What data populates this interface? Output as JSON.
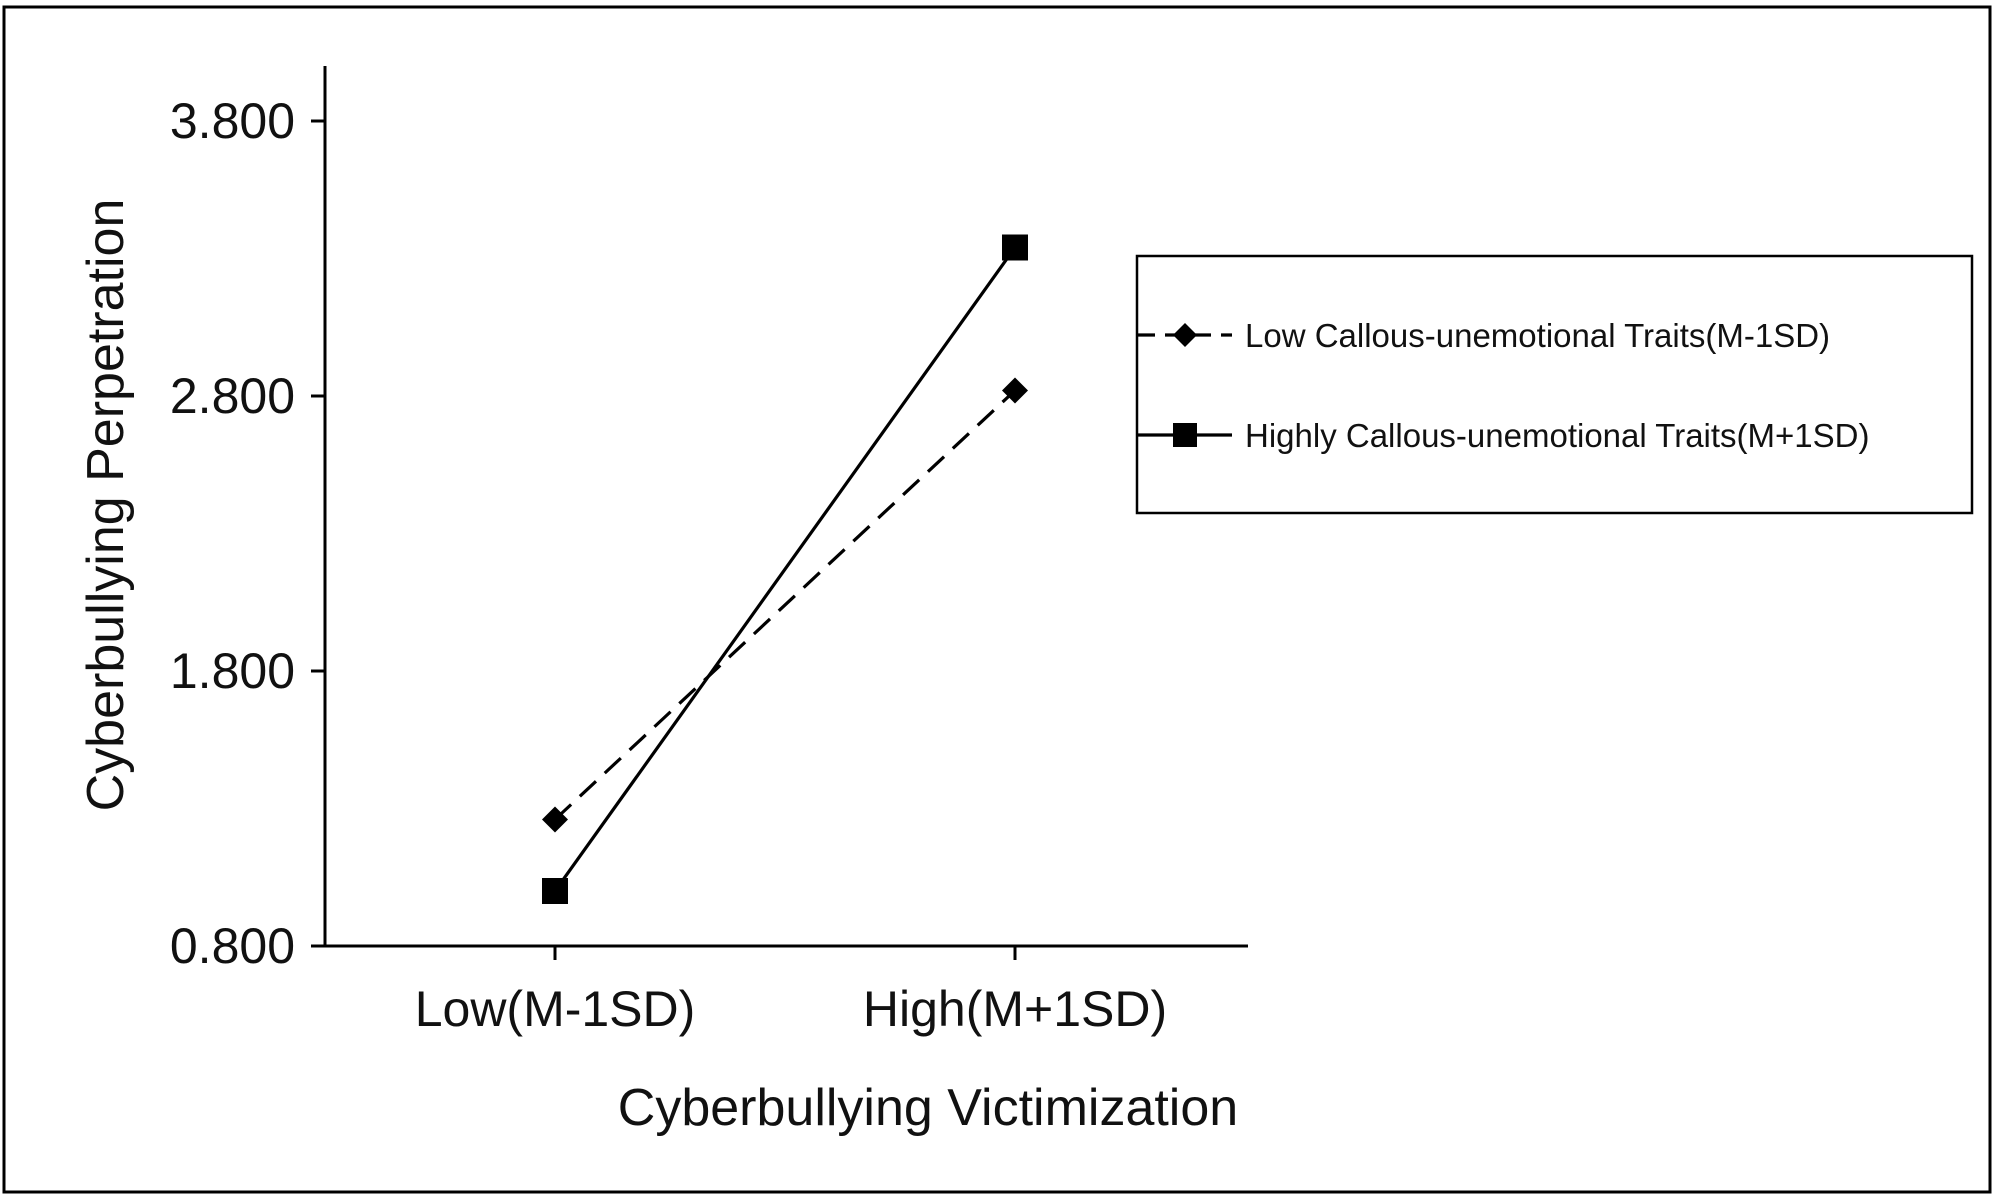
{
  "chart_data": {
    "type": "line",
    "title": "",
    "xlabel": "Cyberbullying Victimization",
    "ylabel": "Cyberbullying Perpetration",
    "categories": [
      "Low(M-1SD)",
      "High(M+1SD)"
    ],
    "y_ticks": [
      "0.800",
      "1.800",
      "2.800",
      "3.800"
    ],
    "ylim": [
      0.8,
      3.8
    ],
    "grid": false,
    "legend_position": "right",
    "series": [
      {
        "name": "Low Callous-unemotional Traits(M-1SD)",
        "values": [
          1.26,
          2.82
        ],
        "line_style": "dashed",
        "marker": "diamond",
        "color": "#000000"
      },
      {
        "name": "Highly Callous-unemotional Traits(M+1SD)",
        "values": [
          1.0,
          3.34
        ],
        "line_style": "solid",
        "marker": "square",
        "color": "#000000"
      }
    ]
  }
}
